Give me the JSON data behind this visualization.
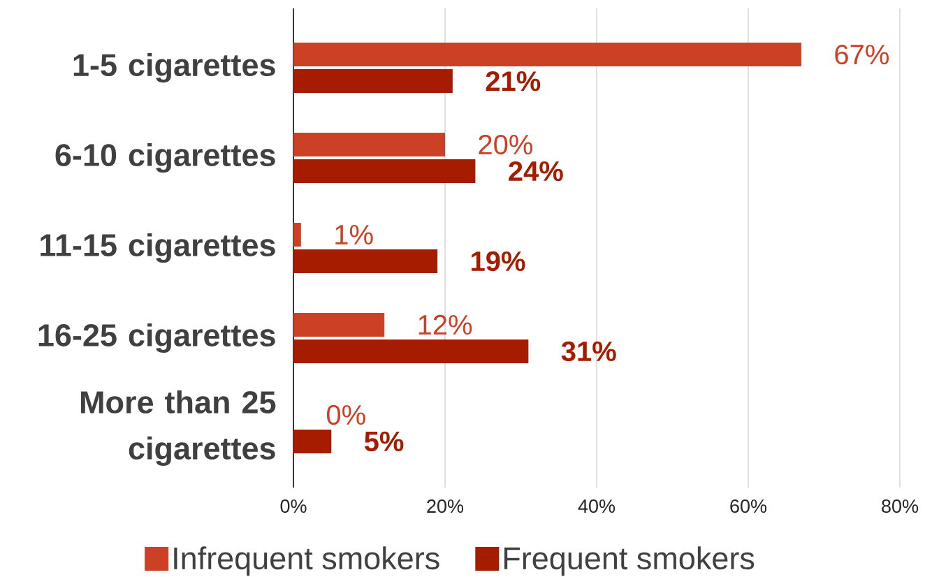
{
  "chart_data": {
    "type": "bar",
    "orientation": "horizontal",
    "categories": [
      "1-5 cigarettes",
      "6-10 cigarettes",
      "11-15 cigarettes",
      "16-25 cigarettes",
      "More than 25 cigarettes"
    ],
    "series": [
      {
        "name": "Infrequent smokers",
        "color": "#cc4125",
        "values": [
          67,
          20,
          1,
          12,
          0
        ],
        "value_labels": [
          "67%",
          "20%",
          "1%",
          "12%",
          "0%"
        ]
      },
      {
        "name": "Frequent smokers",
        "color": "#a61c00",
        "values": [
          21,
          24,
          19,
          31,
          5
        ],
        "value_labels": [
          "21%",
          "24%",
          "19%",
          "31%",
          "5%"
        ]
      }
    ],
    "xlim": [
      0,
      80
    ],
    "xticks": [
      {
        "value": 0,
        "label": "0%"
      },
      {
        "value": 20,
        "label": "20%"
      },
      {
        "value": 40,
        "label": "40%"
      },
      {
        "value": 60,
        "label": "60%"
      },
      {
        "value": 80,
        "label": "80%"
      }
    ],
    "grid": "x",
    "legend": "bottom"
  }
}
